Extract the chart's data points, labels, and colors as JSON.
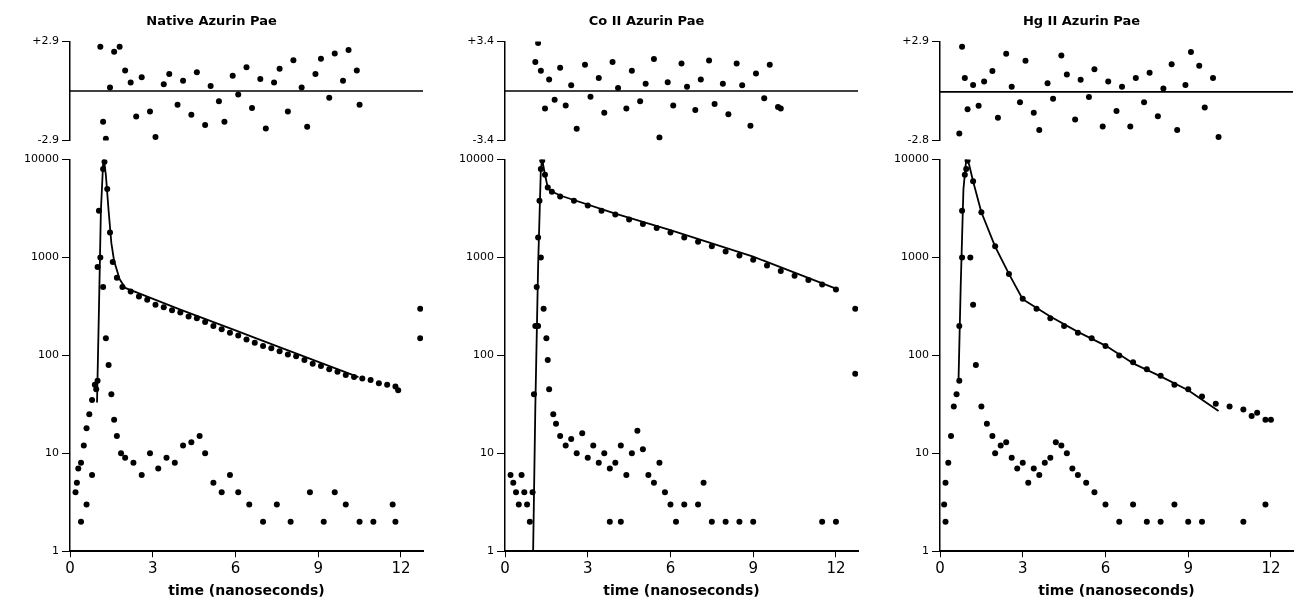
{
  "chart_data": [
    {
      "type": "scatter",
      "title": "Native Azurin Pae",
      "xlim": [
        0,
        12.8
      ],
      "ylim": [
        -2.9,
        2.9
      ],
      "yticks": [
        {
          "value": 2.9,
          "label": "+2.9"
        },
        {
          "value": -2.9,
          "label": "-2.9"
        }
      ],
      "tick_labels": "y",
      "grid": false,
      "legend": false,
      "marker": "circle",
      "ref_lines": [
        {
          "axis": "y",
          "value": 0,
          "color": "#000000"
        }
      ],
      "series": [
        {
          "type": "scatter",
          "color": "#000000",
          "x": [
            1.1,
            1.2,
            1.3,
            1.45,
            1.6,
            1.8,
            2.0,
            2.2,
            2.4,
            2.6,
            2.9,
            3.1,
            3.4,
            3.6,
            3.9,
            4.1,
            4.4,
            4.6,
            4.9,
            5.1,
            5.4,
            5.6,
            5.9,
            6.1,
            6.4,
            6.6,
            6.9,
            7.1,
            7.4,
            7.6,
            7.9,
            8.1,
            8.4,
            8.6,
            8.9,
            9.1,
            9.4,
            9.6,
            9.9,
            10.1,
            10.4,
            10.5
          ],
          "values": [
            2.6,
            -1.8,
            -2.8,
            0.2,
            2.3,
            2.6,
            1.2,
            0.5,
            -1.5,
            0.8,
            -1.2,
            -2.7,
            0.4,
            1.0,
            -0.8,
            0.6,
            -1.4,
            1.1,
            -2.0,
            0.3,
            -0.6,
            -1.8,
            0.9,
            -0.2,
            1.4,
            -1.0,
            0.7,
            -2.2,
            0.5,
            1.3,
            -1.2,
            1.8,
            0.2,
            -2.1,
            1.0,
            1.9,
            -0.4,
            2.2,
            0.6,
            2.4,
            1.2,
            -0.8
          ]
        }
      ]
    },
    {
      "type": "scatter",
      "title": "Co II Azurin Pae",
      "xlim": [
        0,
        12.8
      ],
      "ylim": [
        -3.4,
        3.4
      ],
      "yticks": [
        {
          "value": 3.4,
          "label": "+3.4"
        },
        {
          "value": -3.4,
          "label": "-3.4"
        }
      ],
      "tick_labels": "y",
      "grid": false,
      "legend": false,
      "marker": "circle",
      "ref_lines": [
        {
          "axis": "y",
          "value": 0,
          "color": "#000000"
        }
      ],
      "series": [
        {
          "type": "scatter",
          "color": "#000000",
          "x": [
            1.1,
            1.2,
            1.3,
            1.45,
            1.6,
            1.8,
            2.0,
            2.2,
            2.4,
            2.6,
            2.9,
            3.1,
            3.4,
            3.6,
            3.9,
            4.1,
            4.4,
            4.6,
            4.9,
            5.1,
            5.4,
            5.6,
            5.9,
            6.1,
            6.4,
            6.6,
            6.9,
            7.1,
            7.4,
            7.6,
            7.9,
            8.1,
            8.4,
            8.6,
            8.9,
            9.1,
            9.4,
            9.6,
            9.9,
            10.0
          ],
          "values": [
            2.0,
            3.3,
            1.4,
            -1.2,
            0.8,
            -0.6,
            1.6,
            -1.0,
            0.4,
            -2.6,
            1.8,
            -0.4,
            0.9,
            -1.5,
            2.0,
            0.2,
            -1.2,
            1.4,
            -0.7,
            0.5,
            2.2,
            -3.2,
            0.6,
            -1.0,
            1.9,
            0.3,
            -1.3,
            0.8,
            2.1,
            -0.9,
            0.5,
            -1.6,
            1.9,
            0.4,
            -2.4,
            1.2,
            -0.5,
            1.8,
            -1.1,
            -1.2
          ]
        }
      ]
    },
    {
      "type": "scatter",
      "title": "Hg II Azurin Pae",
      "xlim": [
        0,
        12.8
      ],
      "ylim": [
        -2.8,
        2.9
      ],
      "yticks": [
        {
          "value": 2.9,
          "label": "+2.9"
        },
        {
          "value": -2.8,
          "label": "-2.8"
        }
      ],
      "tick_labels": "y",
      "grid": false,
      "legend": false,
      "marker": "circle",
      "ref_lines": [
        {
          "axis": "y",
          "value": 0,
          "color": "#000000"
        }
      ],
      "series": [
        {
          "type": "scatter",
          "color": "#000000",
          "x": [
            0.7,
            0.8,
            0.9,
            1.0,
            1.2,
            1.4,
            1.6,
            1.9,
            2.1,
            2.4,
            2.6,
            2.9,
            3.1,
            3.4,
            3.6,
            3.9,
            4.1,
            4.4,
            4.6,
            4.9,
            5.1,
            5.4,
            5.6,
            5.9,
            6.1,
            6.4,
            6.6,
            6.9,
            7.1,
            7.4,
            7.6,
            7.9,
            8.1,
            8.4,
            8.6,
            8.9,
            9.1,
            9.4,
            9.6,
            9.9,
            10.1
          ],
          "values": [
            -2.4,
            2.6,
            0.8,
            -1.0,
            0.4,
            -0.8,
            0.6,
            1.2,
            -1.5,
            2.2,
            0.3,
            -0.6,
            1.8,
            -1.2,
            -2.2,
            0.5,
            -0.4,
            2.1,
            1.0,
            -1.6,
            0.7,
            -0.3,
            1.3,
            -2.0,
            0.6,
            -1.1,
            0.3,
            -2.0,
            0.8,
            -0.6,
            1.1,
            -1.4,
            0.2,
            1.6,
            -2.2,
            0.4,
            2.3,
            1.5,
            -0.9,
            0.8,
            -2.6
          ]
        }
      ]
    },
    {
      "type": "scatter",
      "xlabel": "time (nanoseconds)",
      "xlim": [
        0,
        12.8
      ],
      "xticks": [
        0,
        3,
        6,
        9,
        12
      ],
      "ylim": [
        1,
        10000
      ],
      "yticks": [
        1,
        10,
        100,
        1000,
        10000
      ],
      "log": "y",
      "grid": false,
      "legend": false,
      "marker": "circle",
      "series": [
        {
          "type": "scatter",
          "color": "#000000",
          "x": [
            0.95,
            1.0,
            1.1,
            1.2,
            1.25,
            1.35,
            1.45,
            1.55,
            1.7,
            1.9,
            2.2,
            2.5,
            2.8,
            3.1,
            3.4,
            3.7,
            4.0,
            4.3,
            4.6,
            4.9,
            5.2,
            5.5,
            5.8,
            6.1,
            6.4,
            6.7,
            7.0,
            7.3,
            7.6,
            7.9,
            8.2,
            8.5,
            8.8,
            9.1,
            9.4,
            9.7,
            10.0,
            10.3,
            10.6,
            10.9,
            11.2,
            11.5,
            11.8,
            11.9,
            12.7,
            12.7
          ],
          "values": [
            45,
            55,
            1000,
            8000,
            9500,
            5000,
            1800,
            900,
            620,
            500,
            450,
            400,
            370,
            330,
            310,
            290,
            275,
            250,
            240,
            220,
            200,
            185,
            170,
            160,
            145,
            135,
            125,
            118,
            110,
            102,
            98,
            90,
            82,
            78,
            72,
            68,
            63,
            60,
            58,
            56,
            52,
            50,
            48,
            44,
            300,
            150
          ]
        },
        {
          "type": "scatter",
          "color": "#000000",
          "x": [
            0.2,
            0.25,
            0.3,
            0.4,
            0.5,
            0.6,
            0.7,
            0.8,
            0.9,
            1.0,
            1.05,
            1.2,
            1.3,
            1.4,
            1.5,
            1.6,
            1.7,
            1.85,
            2.0,
            2.3,
            2.6,
            2.9,
            3.2,
            3.5,
            3.8,
            4.1,
            4.4,
            4.7,
            4.9,
            5.2,
            5.5,
            5.8,
            6.1,
            6.5,
            7.0,
            7.5,
            8.0,
            8.7,
            9.2,
            9.6,
            10.0,
            10.5,
            11.0,
            11.7,
            11.8,
            0.4,
            0.6,
            0.8
          ],
          "values": [
            4,
            5,
            7,
            8,
            12,
            18,
            25,
            35,
            50,
            800,
            3000,
            500,
            150,
            80,
            40,
            22,
            15,
            10,
            9,
            8,
            6,
            10,
            7,
            9,
            8,
            12,
            13,
            15,
            10,
            5,
            4,
            6,
            4,
            3,
            2,
            3,
            2,
            4,
            2,
            4,
            3,
            2,
            2,
            3,
            2,
            2,
            3,
            6
          ]
        },
        {
          "type": "line",
          "marker": "none",
          "color": "#000000",
          "x": [
            0.98,
            1.05,
            1.12,
            1.2,
            1.23,
            1.3,
            1.4,
            1.5,
            1.6,
            1.8,
            2,
            4,
            6,
            8,
            10.46
          ],
          "values": [
            33,
            300,
            3000,
            9000,
            10000,
            7000,
            3000,
            1400,
            920,
            600,
            490,
            294,
            180,
            110,
            60
          ]
        }
      ]
    },
    {
      "type": "scatter",
      "xlabel": "time (nanoseconds)",
      "xlim": [
        0,
        12.8
      ],
      "xticks": [
        0,
        3,
        6,
        9,
        12
      ],
      "ylim": [
        1,
        10000
      ],
      "yticks": [
        1,
        10,
        100,
        1000,
        10000
      ],
      "log": "y",
      "grid": false,
      "legend": false,
      "marker": "circle",
      "series": [
        {
          "type": "scatter",
          "color": "#000000",
          "x": [
            1.05,
            1.1,
            1.15,
            1.2,
            1.25,
            1.3,
            1.35,
            1.45,
            1.55,
            1.7,
            2,
            2.5,
            3,
            3.5,
            4,
            4.5,
            5,
            5.5,
            6,
            6.5,
            7,
            7.5,
            8,
            8.5,
            9,
            9.5,
            10,
            10.5,
            11,
            11.5,
            12,
            12.7,
            12.7
          ],
          "values": [
            40,
            200,
            500,
            1600,
            3800,
            8000,
            9800,
            7000,
            5200,
            4700,
            4200,
            3800,
            3400,
            3000,
            2750,
            2450,
            2200,
            2000,
            1800,
            1600,
            1450,
            1300,
            1150,
            1050,
            950,
            830,
            730,
            650,
            590,
            530,
            470,
            300,
            65
          ]
        },
        {
          "type": "scatter",
          "color": "#000000",
          "x": [
            0.2,
            0.3,
            0.4,
            0.5,
            0.6,
            0.7,
            0.8,
            0.9,
            1.0,
            1.2,
            1.3,
            1.4,
            1.5,
            1.55,
            1.6,
            1.75,
            1.85,
            2,
            2.2,
            2.4,
            2.6,
            2.8,
            3,
            3.2,
            3.4,
            3.6,
            3.8,
            4,
            4.2,
            4.4,
            4.6,
            4.8,
            5,
            5.2,
            5.4,
            5.6,
            5.8,
            6,
            6.2,
            6.5,
            7,
            7.2,
            7.5,
            8,
            8.5,
            9,
            11.5,
            12,
            3.8,
            4.2
          ],
          "values": [
            6,
            5,
            4,
            3,
            6,
            4,
            3,
            2,
            4,
            200,
            1000,
            300,
            150,
            90,
            45,
            25,
            20,
            15,
            12,
            14,
            10,
            16,
            9,
            12,
            8,
            10,
            7,
            8,
            12,
            6,
            10,
            17,
            11,
            6,
            5,
            8,
            4,
            3,
            2,
            3,
            3,
            5,
            2,
            2,
            2,
            2,
            2,
            2,
            2,
            2
          ]
        },
        {
          "type": "line",
          "marker": "none",
          "color": "#000000",
          "x": [
            1.02,
            1.1,
            1.2,
            1.3,
            1.35,
            1.45,
            1.55,
            1.65,
            2,
            4,
            6,
            9,
            12
          ],
          "values": [
            1,
            30,
            800,
            8000,
            10000,
            7000,
            5200,
            4800,
            4300,
            2800,
            1900,
            1020,
            480
          ]
        }
      ]
    },
    {
      "type": "scatter",
      "xlabel": "time (nanoseconds)",
      "xlim": [
        0,
        12.8
      ],
      "xticks": [
        0,
        3,
        6,
        9,
        12
      ],
      "ylim": [
        1,
        10000
      ],
      "yticks": [
        1,
        10,
        100,
        1000,
        10000
      ],
      "log": "y",
      "grid": false,
      "legend": false,
      "marker": "circle",
      "series": [
        {
          "type": "scatter",
          "color": "#000000",
          "x": [
            0.6,
            0.7,
            0.8,
            0.9,
            1.0,
            1.2,
            1.5,
            2,
            2.5,
            3,
            3.5,
            4,
            4.5,
            5,
            5.5,
            6,
            6.5,
            7,
            7.5,
            8,
            8.5,
            9,
            9.5,
            10,
            10.5,
            11,
            11.3,
            11.5,
            11.8,
            12
          ],
          "values": [
            40,
            55,
            1000,
            7000,
            9800,
            6000,
            2900,
            1300,
            680,
            380,
            300,
            240,
            200,
            170,
            150,
            125,
            100,
            85,
            72,
            62,
            50,
            45,
            38,
            32,
            30,
            28,
            24,
            26,
            22,
            22
          ]
        },
        {
          "type": "scatter",
          "color": "#000000",
          "x": [
            0.15,
            0.2,
            0.3,
            0.4,
            0.5,
            0.6,
            0.7,
            0.8,
            0.95,
            1.1,
            1.2,
            1.3,
            1.5,
            1.7,
            1.9,
            2,
            2.2,
            2.4,
            2.6,
            2.8,
            3,
            3.2,
            3.4,
            3.6,
            3.8,
            4,
            4.2,
            4.4,
            4.6,
            4.8,
            5,
            5.3,
            5.6,
            6,
            6.5,
            7,
            7.5,
            8,
            8.5,
            9,
            9.5,
            11,
            11.8,
            0.2
          ],
          "values": [
            3,
            5,
            8,
            15,
            30,
            null,
            200,
            3000,
            8000,
            1000,
            330,
            80,
            30,
            20,
            15,
            10,
            12,
            13,
            9,
            7,
            8,
            5,
            7,
            6,
            8,
            9,
            13,
            12,
            10,
            7,
            6,
            5,
            4,
            3,
            2,
            3,
            2,
            2,
            3,
            2,
            2,
            2,
            3,
            2
          ]
        },
        {
          "type": "line",
          "marker": "none",
          "color": "#000000",
          "x": [
            0.67,
            0.75,
            0.85,
            0.95,
            1.05,
            1.2,
            1.5,
            2,
            2.5,
            3,
            4,
            5,
            6,
            7,
            8,
            9,
            10.1
          ],
          "values": [
            53,
            500,
            5000,
            10000,
            9000,
            6000,
            2900,
            1290,
            680,
            375,
            250,
            174,
            126,
            83,
            61,
            44,
            27
          ]
        }
      ]
    }
  ]
}
